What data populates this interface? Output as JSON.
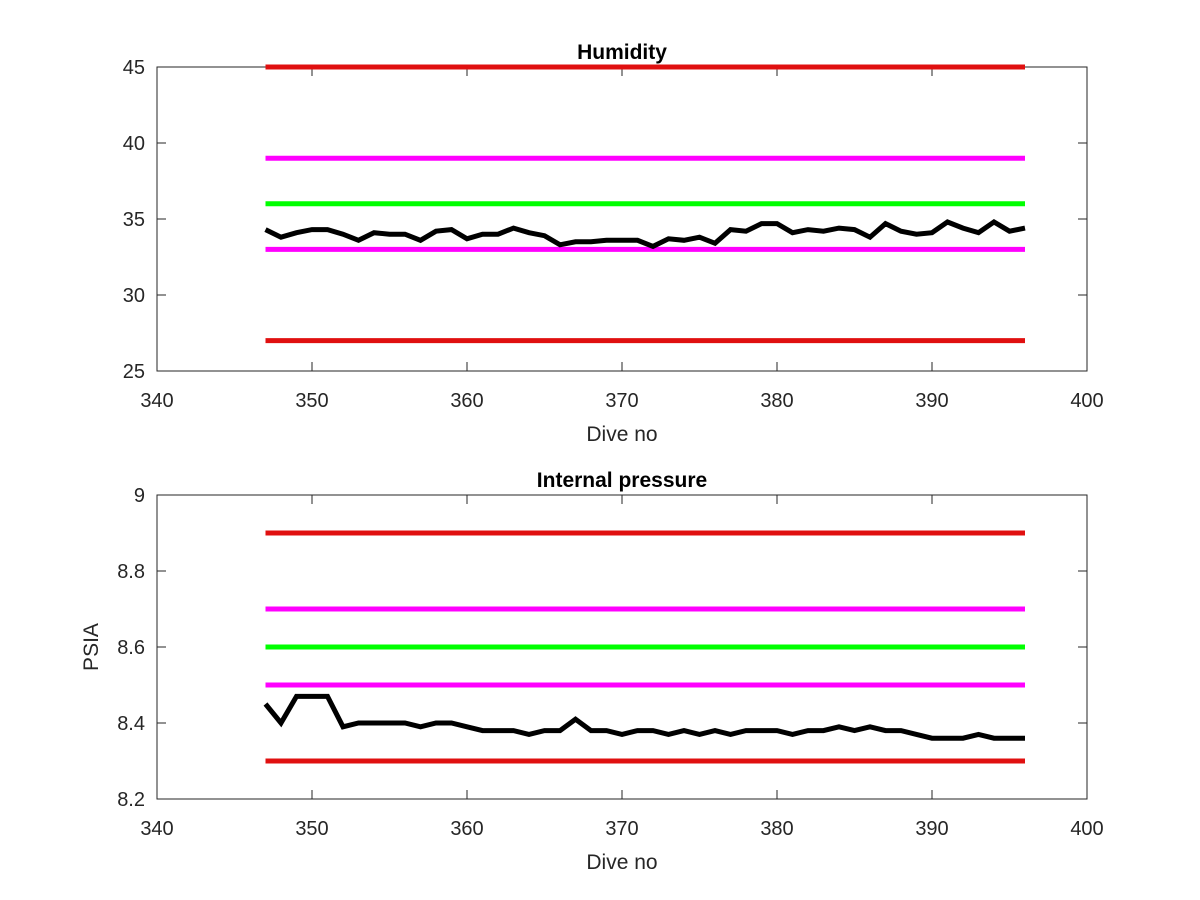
{
  "chart_data": [
    {
      "type": "line",
      "title": "Humidity",
      "xlabel": "Dive no",
      "ylabel": "",
      "xlim": [
        340,
        400
      ],
      "ylim": [
        25,
        45
      ],
      "xticks": [
        340,
        350,
        360,
        370,
        380,
        390,
        400
      ],
      "yticks": [
        25,
        30,
        35,
        40,
        45
      ],
      "grid": false,
      "reference_lines": [
        {
          "y": 45,
          "x": [
            347,
            396
          ],
          "color": "#e01010"
        },
        {
          "y": 39,
          "x": [
            347,
            396
          ],
          "color": "#ff00ff"
        },
        {
          "y": 36,
          "x": [
            347,
            396
          ],
          "color": "#00ff00"
        },
        {
          "y": 33,
          "x": [
            347,
            396
          ],
          "color": "#ff00ff"
        },
        {
          "y": 27,
          "x": [
            347,
            396
          ],
          "color": "#e01010"
        }
      ],
      "series": [
        {
          "color": "#000000",
          "x": [
            347,
            348,
            349,
            350,
            351,
            352,
            353,
            354,
            355,
            356,
            357,
            358,
            359,
            360,
            361,
            362,
            363,
            364,
            365,
            366,
            367,
            368,
            369,
            370,
            371,
            372,
            373,
            374,
            375,
            376,
            377,
            378,
            379,
            380,
            381,
            382,
            383,
            384,
            385,
            386,
            387,
            388,
            389,
            390,
            391,
            392,
            393,
            394,
            395,
            396
          ],
          "values": [
            34.3,
            33.8,
            34.1,
            34.3,
            34.3,
            34.0,
            33.6,
            34.1,
            34.0,
            34.0,
            33.6,
            34.2,
            34.3,
            33.7,
            34.0,
            34.0,
            34.4,
            34.1,
            33.9,
            33.3,
            33.5,
            33.5,
            33.6,
            33.6,
            33.6,
            33.2,
            33.7,
            33.6,
            33.8,
            33.4,
            34.3,
            34.2,
            34.7,
            34.7,
            34.1,
            34.3,
            34.2,
            34.4,
            34.3,
            33.8,
            34.7,
            34.2,
            34.0,
            34.1,
            34.8,
            34.4,
            34.1,
            34.8,
            34.2,
            34.4
          ]
        }
      ]
    },
    {
      "type": "line",
      "title": "Internal pressure",
      "xlabel": "Dive no",
      "ylabel": "PSIA",
      "xlim": [
        340,
        400
      ],
      "ylim": [
        8.2,
        9.0
      ],
      "xticks": [
        340,
        350,
        360,
        370,
        380,
        390,
        400
      ],
      "yticks": [
        8.2,
        8.4,
        8.6,
        8.8,
        9
      ],
      "grid": false,
      "reference_lines": [
        {
          "y": 8.9,
          "x": [
            347,
            396
          ],
          "color": "#e01010"
        },
        {
          "y": 8.7,
          "x": [
            347,
            396
          ],
          "color": "#ff00ff"
        },
        {
          "y": 8.6,
          "x": [
            347,
            396
          ],
          "color": "#00ff00"
        },
        {
          "y": 8.5,
          "x": [
            347,
            396
          ],
          "color": "#ff00ff"
        },
        {
          "y": 8.3,
          "x": [
            347,
            396
          ],
          "color": "#e01010"
        }
      ],
      "series": [
        {
          "color": "#000000",
          "x": [
            347,
            348,
            349,
            350,
            351,
            352,
            353,
            354,
            355,
            356,
            357,
            358,
            359,
            360,
            361,
            362,
            363,
            364,
            365,
            366,
            367,
            368,
            369,
            370,
            371,
            372,
            373,
            374,
            375,
            376,
            377,
            378,
            379,
            380,
            381,
            382,
            383,
            384,
            385,
            386,
            387,
            388,
            389,
            390,
            391,
            392,
            393,
            394,
            395,
            396
          ],
          "values": [
            8.45,
            8.4,
            8.47,
            8.47,
            8.47,
            8.39,
            8.4,
            8.4,
            8.4,
            8.4,
            8.39,
            8.4,
            8.4,
            8.39,
            8.38,
            8.38,
            8.38,
            8.37,
            8.38,
            8.38,
            8.41,
            8.38,
            8.38,
            8.37,
            8.38,
            8.38,
            8.37,
            8.38,
            8.37,
            8.38,
            8.37,
            8.38,
            8.38,
            8.38,
            8.37,
            8.38,
            8.38,
            8.39,
            8.38,
            8.39,
            8.38,
            8.38,
            8.37,
            8.36,
            8.36,
            8.36,
            8.37,
            8.36,
            8.36,
            8.36
          ]
        }
      ]
    }
  ]
}
